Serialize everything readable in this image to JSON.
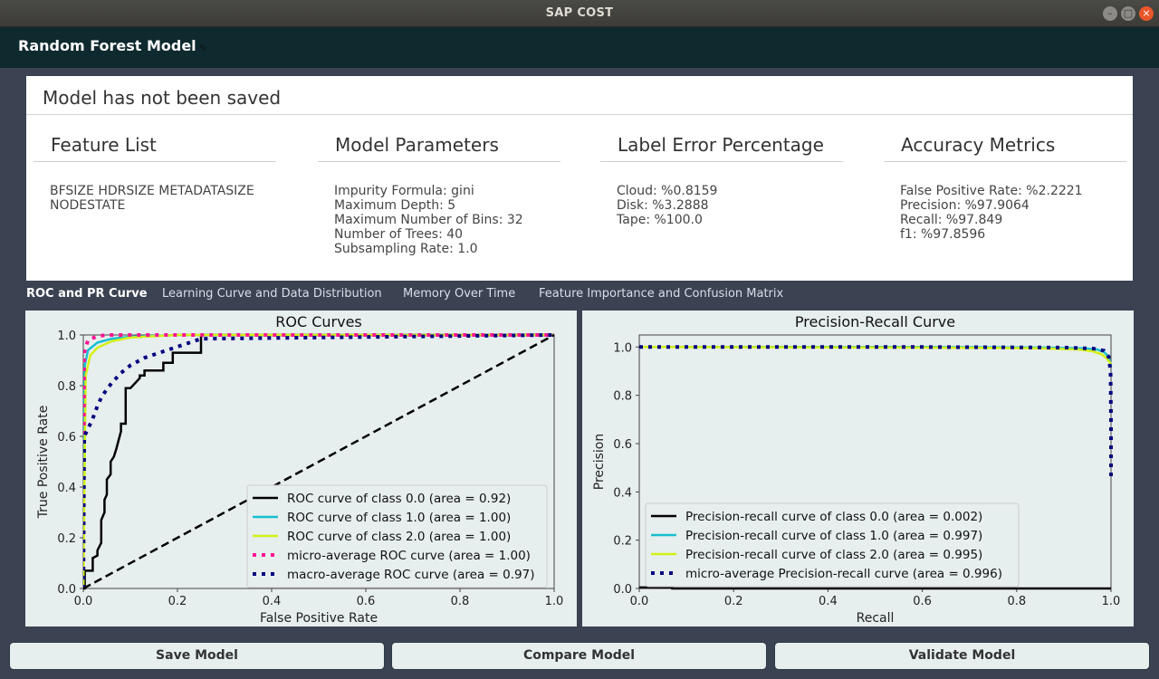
{
  "window": {
    "title": "SAP COST"
  },
  "header": {
    "title": "Random Forest Model"
  },
  "status": "Model has not been saved",
  "sections": [
    {
      "title": "Feature List",
      "lines": [
        "BFSIZE HDRSIZE METADATASIZE",
        "NODESTATE"
      ]
    },
    {
      "title": "Model Parameters",
      "lines": [
        "Impurity Formula: gini",
        "Maximum Depth: 5",
        "Maximum Number of Bins: 32",
        "Number of Trees: 40",
        "Subsampling Rate: 1.0"
      ]
    },
    {
      "title": "Label Error Percentage",
      "lines": [
        "Cloud: %0.8159",
        "Disk: %3.2888",
        "Tape: %100.0"
      ]
    },
    {
      "title": "Accuracy Metrics",
      "lines": [
        "False Positive Rate: %2.2221",
        "Precision: %97.9064",
        "Recall: %97.849",
        "f1: %97.8596"
      ]
    }
  ],
  "tabs": [
    "ROC and PR Curve",
    "Learning Curve and Data Distribution",
    "Memory Over Time",
    "Feature Importance and Confusion Matrix"
  ],
  "buttons": {
    "save": "Save Model",
    "compare": "Compare Model",
    "validate": "Validate Model"
  },
  "colors": {
    "class0": "#000000",
    "class1": "#17becf",
    "class2": "#d4f016",
    "micro": "#ff1493",
    "macro": "#000080",
    "micro_pr": "#000080"
  },
  "chart_data": [
    {
      "type": "line",
      "title": "ROC Curves",
      "xlabel": "False Positive Rate",
      "ylabel": "True Positive Rate",
      "xlim": [
        0,
        1
      ],
      "ylim": [
        0,
        1
      ],
      "xticks": [
        "0.0",
        "0.2",
        "0.4",
        "0.6",
        "0.8",
        "1.0"
      ],
      "yticks": [
        "0.0",
        "0.2",
        "0.4",
        "0.6",
        "0.8",
        "1.0"
      ],
      "legend_position": "lower-right",
      "series": [
        {
          "name": "ROC curve of class 0.0 (area = 0.92)",
          "color": "#000000",
          "style": "solid",
          "x": [
            0,
            0.003,
            0.003,
            0.02,
            0.02,
            0.03,
            0.03,
            0.038,
            0.038,
            0.045,
            0.045,
            0.05,
            0.05,
            0.058,
            0.058,
            0.065,
            0.07,
            0.08,
            0.08,
            0.09,
            0.09,
            0.1,
            0.12,
            0.12,
            0.13,
            0.13,
            0.17,
            0.17,
            0.19,
            0.19,
            0.25,
            0.25,
            1.0
          ],
          "y": [
            0,
            0,
            0.07,
            0.07,
            0.12,
            0.13,
            0.15,
            0.18,
            0.27,
            0.3,
            0.35,
            0.37,
            0.43,
            0.45,
            0.5,
            0.52,
            0.55,
            0.62,
            0.65,
            0.65,
            0.79,
            0.79,
            0.83,
            0.84,
            0.84,
            0.86,
            0.86,
            0.89,
            0.89,
            0.93,
            0.93,
            1.0,
            1.0
          ]
        },
        {
          "name": "ROC curve of class 1.0 (area = 1.00)",
          "color": "#17becf",
          "style": "solid",
          "x": [
            0,
            0.003,
            0.01,
            0.03,
            0.06,
            0.1,
            0.2,
            1.0
          ],
          "y": [
            0,
            0.88,
            0.94,
            0.97,
            0.985,
            0.993,
            1.0,
            1.0
          ]
        },
        {
          "name": "ROC curve of class 2.0 (area = 1.00)",
          "color": "#d4f016",
          "style": "solid",
          "x": [
            0,
            0.005,
            0.015,
            0.03,
            0.06,
            0.1,
            0.2,
            1.0
          ],
          "y": [
            0,
            0.84,
            0.92,
            0.95,
            0.975,
            0.99,
            1.0,
            1.0
          ]
        },
        {
          "name": "micro-average ROC curve (area = 1.00)",
          "color": "#ff1493",
          "style": "dotted",
          "x": [
            0,
            0.002,
            0.01,
            0.03,
            0.05,
            1.0
          ],
          "y": [
            0,
            0.93,
            0.98,
            0.995,
            1.0,
            1.0
          ]
        },
        {
          "name": "macro-average ROC curve (area = 0.97)",
          "color": "#000080",
          "style": "dotted",
          "x": [
            0,
            0.002,
            0.01,
            0.02,
            0.03,
            0.04,
            0.06,
            0.08,
            0.1,
            0.13,
            0.17,
            0.21,
            0.25,
            1.0
          ],
          "y": [
            0,
            0.6,
            0.63,
            0.67,
            0.72,
            0.76,
            0.81,
            0.85,
            0.88,
            0.91,
            0.935,
            0.96,
            0.985,
            1.0
          ]
        },
        {
          "name": "",
          "color": "#000000",
          "style": "dashed",
          "legend": false,
          "x": [
            0,
            1
          ],
          "y": [
            0,
            1
          ]
        }
      ]
    },
    {
      "type": "line",
      "title": "Precision-Recall Curve",
      "xlabel": "Recall",
      "ylabel": "Precision",
      "xlim": [
        0,
        1
      ],
      "ylim": [
        0,
        1.05
      ],
      "xticks": [
        "0.0",
        "0.2",
        "0.4",
        "0.6",
        "0.8",
        "1.0"
      ],
      "yticks": [
        "0.0",
        "0.2",
        "0.4",
        "0.6",
        "0.8",
        "1.0"
      ],
      "legend_position": "lower-left",
      "series": [
        {
          "name": "Precision-recall curve of class 0.0 (area = 0.002)",
          "color": "#000000",
          "style": "solid",
          "x": [
            0,
            0.07,
            0.07,
            1.0
          ],
          "y": [
            0.004,
            0.004,
            0.0,
            0.0
          ]
        },
        {
          "name": "Precision-recall curve of class 1.0 (area = 0.997)",
          "color": "#17becf",
          "style": "solid",
          "x": [
            0,
            0.6,
            0.85,
            0.94,
            0.97,
            0.985,
            0.995,
            1.0
          ],
          "y": [
            1.0,
            1.0,
            0.998,
            0.995,
            0.99,
            0.98,
            0.96,
            0.92
          ]
        },
        {
          "name": "Precision-recall curve of class 2.0 (area = 0.995)",
          "color": "#d4f016",
          "style": "solid",
          "x": [
            0,
            0.6,
            0.85,
            0.93,
            0.96,
            0.98,
            0.99,
            1.0
          ],
          "y": [
            1.0,
            0.998,
            0.995,
            0.99,
            0.983,
            0.97,
            0.955,
            0.93
          ]
        },
        {
          "name": "micro-average Precision-recall curve (area = 0.996)",
          "color": "#000080",
          "style": "dotted",
          "x": [
            0,
            0.6,
            0.9,
            0.96,
            0.985,
            0.995,
            0.999,
            1.0,
            1.0
          ],
          "y": [
            1.0,
            1.0,
            0.998,
            0.994,
            0.985,
            0.96,
            0.9,
            0.7,
            0.45
          ]
        }
      ]
    }
  ]
}
